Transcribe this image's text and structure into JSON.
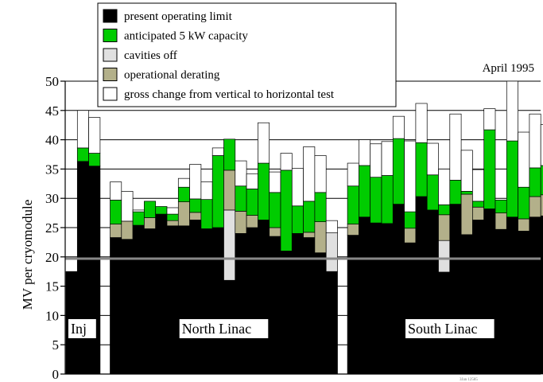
{
  "chart_data": {
    "type": "bar",
    "stacked": true,
    "date_label": "April 1995",
    "ylabel": "MV per cryomodule",
    "xlabel": "",
    "ylim": [
      0,
      50
    ],
    "yticks": [
      0,
      5,
      10,
      15,
      20,
      25,
      30,
      35,
      40,
      45,
      50
    ],
    "grid": true,
    "reference_line": 19.7,
    "colors": {
      "present": "#000000",
      "anticipated": "#00cc00",
      "cavities": "#e0e0e0",
      "derating": "#b3b08a",
      "gross": "#ffffff",
      "reference": "#888888"
    },
    "legend": [
      {
        "key": "present",
        "label": "present operating limit"
      },
      {
        "key": "anticipated",
        "label": "anticipated 5 kW capacity"
      },
      {
        "key": "cavities",
        "label": "cavities off"
      },
      {
        "key": "derating",
        "label": "operational derating"
      },
      {
        "key": "gross",
        "label": "gross change from vertical to horizontal test"
      }
    ],
    "groups": [
      {
        "label": "Inj",
        "bars": [
          {
            "present": 17.5,
            "cavities": 0,
            "derating": 0,
            "anticipated": 0,
            "gross": 0
          },
          {
            "present": 36.3,
            "cavities": 0,
            "derating": 0,
            "anticipated": 2.3,
            "gross": 6.4
          },
          {
            "present": 35.5,
            "cavities": 0,
            "derating": 0,
            "anticipated": 2.2,
            "gross": 6.1
          }
        ]
      },
      {
        "label": "North Linac",
        "bars": [
          {
            "present": 23.3,
            "cavities": 0,
            "derating": 2.3,
            "anticipated": 4.1,
            "gross": 3.1
          },
          {
            "present": 23.0,
            "cavities": 0,
            "derating": 3.1,
            "anticipated": 0,
            "gross": 5.1
          },
          {
            "present": 25.4,
            "cavities": 0,
            "derating": 0,
            "anticipated": 2.3,
            "gross": 0.3
          },
          {
            "present": 24.8,
            "cavities": 0,
            "derating": 1.9,
            "anticipated": 2.8,
            "gross": 0
          },
          {
            "present": 27.3,
            "cavities": 0,
            "derating": 0,
            "anticipated": 1.3,
            "gross": 0
          },
          {
            "present": 25.3,
            "cavities": 0,
            "derating": 0.9,
            "anticipated": 1.1,
            "gross": 1.1
          },
          {
            "present": 25.3,
            "cavities": 0,
            "derating": 4.1,
            "anticipated": 2.5,
            "gross": 1.5
          },
          {
            "present": 26.3,
            "cavities": 0,
            "derating": 1.3,
            "anticipated": 2.3,
            "gross": 5.9
          },
          {
            "present": 24.8,
            "cavities": 0,
            "derating": 0,
            "anticipated": 5.0,
            "gross": 3.0
          },
          {
            "present": 25.0,
            "cavities": 0,
            "derating": 0,
            "anticipated": 12.3,
            "gross": 1.3
          },
          {
            "present": 16.0,
            "cavities": 12.0,
            "derating": 6.8,
            "anticipated": 5.3,
            "gross": 0.0
          },
          {
            "present": 24.0,
            "cavities": 0,
            "derating": 3.8,
            "anticipated": 4.3,
            "gross": 4.3
          },
          {
            "present": 25.0,
            "cavities": 0,
            "derating": 2.1,
            "anticipated": 4.5,
            "gross": 2.6
          },
          {
            "present": 26.3,
            "cavities": 0,
            "derating": 0,
            "anticipated": 9.7,
            "gross": 6.9
          },
          {
            "present": 23.5,
            "cavities": 0,
            "derating": 1.5,
            "anticipated": 6.0,
            "gross": 3.5
          },
          {
            "present": 21.0,
            "cavities": 0,
            "derating": 0,
            "anticipated": 13.8,
            "gross": 2.9
          },
          {
            "present": 24.0,
            "cavities": 0,
            "derating": 0,
            "anticipated": 4.7,
            "gross": 6.4
          },
          {
            "present": 23.3,
            "cavities": 0,
            "derating": 0.9,
            "anticipated": 5.3,
            "gross": 9.3
          },
          {
            "present": 20.7,
            "cavities": 0,
            "derating": 5.3,
            "anticipated": 5.0,
            "gross": 6.3
          },
          {
            "present": 17.5,
            "cavities": 6.6,
            "derating": 0,
            "anticipated": 0,
            "gross": 2.1
          }
        ]
      },
      {
        "label": "South Linac",
        "bars": [
          {
            "present": 23.7,
            "cavities": 0,
            "derating": 1.9,
            "anticipated": 6.5,
            "gross": 3.9
          },
          {
            "present": 26.8,
            "cavities": 0,
            "derating": 0,
            "anticipated": 8.8,
            "gross": 4.4
          },
          {
            "present": 25.8,
            "cavities": 0,
            "derating": 0,
            "anticipated": 7.8,
            "gross": 5.7
          },
          {
            "present": 25.7,
            "cavities": 0,
            "derating": 0,
            "anticipated": 8.2,
            "gross": 5.8
          },
          {
            "present": 29.0,
            "cavities": 0,
            "derating": 0,
            "anticipated": 11.2,
            "gross": 3.8
          },
          {
            "present": 22.4,
            "cavities": 0,
            "derating": 2.5,
            "anticipated": 2.8,
            "gross": 12.1
          },
          {
            "present": 30.3,
            "cavities": 0,
            "derating": 0,
            "anticipated": 9.2,
            "gross": 6.7
          },
          {
            "present": 28.0,
            "cavities": 0,
            "derating": 0,
            "anticipated": 6.0,
            "gross": 5.4
          },
          {
            "present": 17.4,
            "cavities": 5.4,
            "derating": 4.4,
            "anticipated": 1.7,
            "gross": 6.1
          },
          {
            "present": 29.0,
            "cavities": 0,
            "derating": 0,
            "anticipated": 4.1,
            "gross": 11.3
          },
          {
            "present": 23.8,
            "cavities": 0,
            "derating": 6.9,
            "anticipated": 0.5,
            "gross": 7.0
          },
          {
            "present": 26.3,
            "cavities": 0,
            "derating": 2.2,
            "anticipated": 1.0,
            "gross": 5.4
          },
          {
            "present": 28.2,
            "cavities": 0,
            "derating": 0,
            "anticipated": 13.5,
            "gross": 3.6
          },
          {
            "present": 24.7,
            "cavities": 0,
            "derating": 2.8,
            "anticipated": 2.2,
            "gross": 0
          },
          {
            "present": 26.8,
            "cavities": 0,
            "derating": 0,
            "anticipated": 13.0,
            "gross": 10.2
          },
          {
            "present": 24.4,
            "cavities": 0,
            "derating": 2.1,
            "anticipated": 5.4,
            "gross": 9.4
          },
          {
            "present": 26.8,
            "cavities": 0,
            "derating": 3.5,
            "anticipated": 4.9,
            "gross": 9.2
          },
          {
            "present": 27.0,
            "cavities": 0,
            "derating": 3.6,
            "anticipated": 5.0,
            "gross": 7.0
          }
        ]
      }
    ]
  },
  "footer_code": "3Jan 12585"
}
